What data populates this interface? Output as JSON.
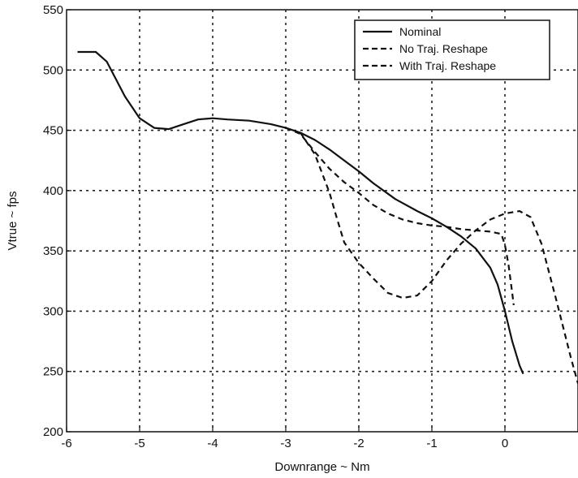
{
  "chart_data": {
    "type": "line",
    "title": "",
    "xlabel": "Downrange ~ Nm",
    "ylabel": "Vtrue ~ fps",
    "xlim": [
      -6,
      1
    ],
    "ylim": [
      200,
      550
    ],
    "xticks": [
      -6,
      -5,
      -4,
      -3,
      -2,
      -1,
      0
    ],
    "xtick_labels": [
      "-6",
      "-5",
      "-4",
      "-3",
      "-2",
      "-1",
      "0"
    ],
    "yticks": [
      200,
      250,
      300,
      350,
      400,
      450,
      500,
      550
    ],
    "ytick_labels": [
      "200",
      "250",
      "300",
      "350",
      "400",
      "450",
      "500",
      "550"
    ],
    "grid": true,
    "legend_position": "top-right",
    "series": [
      {
        "name": "Nominal",
        "dash": "solid",
        "x": [
          -5.85,
          -5.6,
          -5.45,
          -5.2,
          -5.0,
          -4.8,
          -4.6,
          -4.4,
          -4.2,
          -4.0,
          -3.8,
          -3.5,
          -3.2,
          -3.0,
          -2.8,
          -2.6,
          -2.4,
          -2.2,
          -2.0,
          -1.8,
          -1.5,
          -1.2,
          -1.0,
          -0.8,
          -0.6,
          -0.4,
          -0.2,
          -0.1,
          0.0,
          0.1,
          0.2,
          0.25
        ],
        "y": [
          515,
          515,
          507,
          478,
          460,
          452,
          451,
          455,
          459,
          460,
          459,
          458,
          455,
          452,
          448,
          442,
          434,
          425,
          416,
          406,
          393,
          383,
          377,
          370,
          362,
          352,
          336,
          322,
          300,
          275,
          255,
          248
        ]
      },
      {
        "name": "No Traj. Reshape",
        "dash": "dashed",
        "x": [
          -3.0,
          -2.8,
          -2.6,
          -2.4,
          -2.2,
          -2.0,
          -1.8,
          -1.6,
          -1.4,
          -1.2,
          -1.0,
          -0.8,
          -0.6,
          -0.4,
          -0.2,
          -0.05,
          0.0,
          0.05,
          0.1,
          0.12
        ],
        "y": [
          452,
          447,
          432,
          418,
          407,
          398,
          388,
          381,
          376,
          373,
          371,
          370,
          368,
          367,
          366,
          364,
          355,
          338,
          315,
          305
        ]
      },
      {
        "name": "With Traj. Reshape",
        "dash": "dashed",
        "x": [
          -2.8,
          -2.6,
          -2.4,
          -2.3,
          -2.2,
          -2.0,
          -1.8,
          -1.6,
          -1.4,
          -1.2,
          -1.0,
          -0.8,
          -0.6,
          -0.4,
          -0.2,
          0.0,
          0.2,
          0.35,
          0.5,
          0.7,
          0.9,
          1.0
        ],
        "y": [
          448,
          430,
          398,
          377,
          357,
          340,
          327,
          315,
          311,
          313,
          325,
          342,
          356,
          367,
          376,
          381,
          383,
          378,
          356,
          310,
          262,
          240
        ]
      }
    ]
  }
}
